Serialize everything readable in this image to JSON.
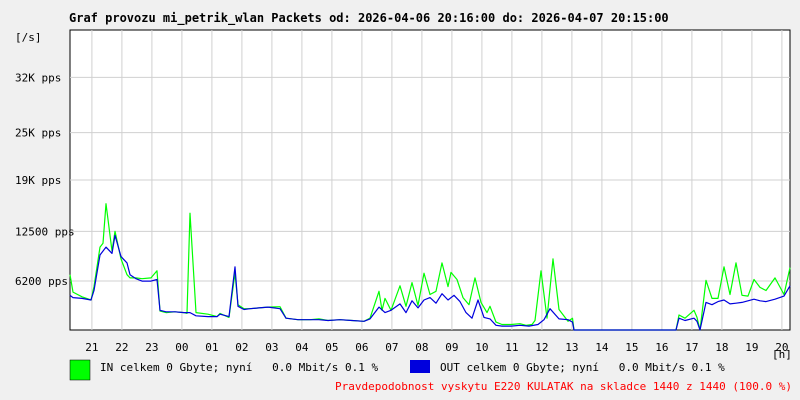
{
  "chart_data": {
    "type": "line",
    "title": "Graf provozu mi_petrik_wlan Packets od: 2026-04-06 20:16:00 do: 2026-04-07 20:15:00",
    "ylabel": "[/s]",
    "xlabel": "[h]",
    "ylim": [
      0,
      38000
    ],
    "y_ticks": [
      {
        "value": 6200,
        "label": "6200 pps"
      },
      {
        "value": 12500,
        "label": "12500 pps"
      },
      {
        "value": 19000,
        "label": "19K pps"
      },
      {
        "value": 25000,
        "label": "25K pps"
      },
      {
        "value": 32000,
        "label": "32K pps"
      }
    ],
    "x_ticks": [
      {
        "value": 0.73,
        "label": "21"
      },
      {
        "value": 1.73,
        "label": "22"
      },
      {
        "value": 2.73,
        "label": "23"
      },
      {
        "value": 3.73,
        "label": "00"
      },
      {
        "value": 4.73,
        "label": "01"
      },
      {
        "value": 5.73,
        "label": "02"
      },
      {
        "value": 6.73,
        "label": "03"
      },
      {
        "value": 7.73,
        "label": "04"
      },
      {
        "value": 8.73,
        "label": "05"
      },
      {
        "value": 9.73,
        "label": "06"
      },
      {
        "value": 10.73,
        "label": "07"
      },
      {
        "value": 11.73,
        "label": "08"
      },
      {
        "value": 12.73,
        "label": "09"
      },
      {
        "value": 13.73,
        "label": "10"
      },
      {
        "value": 14.73,
        "label": "11"
      },
      {
        "value": 15.73,
        "label": "12"
      },
      {
        "value": 16.73,
        "label": "13"
      },
      {
        "value": 17.73,
        "label": "14"
      },
      {
        "value": 18.73,
        "label": "15"
      },
      {
        "value": 19.73,
        "label": "16"
      },
      {
        "value": 20.73,
        "label": "17"
      },
      {
        "value": 21.73,
        "label": "18"
      },
      {
        "value": 22.73,
        "label": "19"
      },
      {
        "value": 23.73,
        "label": "20"
      }
    ],
    "xlim": [
      0,
      24
    ],
    "grid": true,
    "series": [
      {
        "name": "IN",
        "color": "#00ff00",
        "x": [
          0,
          0.1,
          0.4,
          0.7,
          0.8,
          1.0,
          1.1,
          1.2,
          1.4,
          1.5,
          1.7,
          1.9,
          2.0,
          2.2,
          2.4,
          2.7,
          2.9,
          3.0,
          3.2,
          3.5,
          3.8,
          3.9,
          4.0,
          4.2,
          4.6,
          4.9,
          5.0,
          5.3,
          5.5,
          5.6,
          5.8,
          6.0,
          6.3,
          6.6,
          7.0,
          7.2,
          7.6,
          8.0,
          8.3,
          8.6,
          9.0,
          9.4,
          9.8,
          10.0,
          10.3,
          10.4,
          10.5,
          10.7,
          11.0,
          11.2,
          11.4,
          11.6,
          11.8,
          12.0,
          12.2,
          12.4,
          12.6,
          12.7,
          12.9,
          13.1,
          13.3,
          13.5,
          13.7,
          13.9,
          14.0,
          14.2,
          14.4,
          14.7,
          15.0,
          15.2,
          15.4,
          15.5,
          15.7,
          15.9,
          16.1,
          16.3,
          16.6,
          16.75,
          16.8,
          20.2,
          20.3,
          20.5,
          20.8,
          20.9,
          21.0,
          21.2,
          21.4,
          21.6,
          21.8,
          22.0,
          22.2,
          22.4,
          22.6,
          22.8,
          23.0,
          23.2,
          23.5,
          23.8,
          24.0
        ],
        "values": [
          7000,
          4800,
          4200,
          3800,
          5500,
          10500,
          11000,
          16000,
          10000,
          12500,
          9000,
          7000,
          6600,
          6600,
          6500,
          6600,
          7500,
          2400,
          2200,
          2300,
          2200,
          2100,
          14800,
          2200,
          2000,
          1700,
          2100,
          1600,
          7200,
          3200,
          2700,
          2700,
          2800,
          2900,
          2950,
          1500,
          1300,
          1300,
          1400,
          1200,
          1300,
          1200,
          1100,
          1500,
          4900,
          2500,
          4000,
          2500,
          5600,
          3000,
          6000,
          3100,
          7200,
          4500,
          4900,
          8500,
          5500,
          7300,
          6400,
          4100,
          3200,
          6600,
          3500,
          2200,
          3000,
          1000,
          700,
          700,
          800,
          600,
          700,
          1200,
          7500,
          1500,
          9000,
          2600,
          1100,
          1500,
          0,
          0,
          1900,
          1500,
          2500,
          1600,
          0,
          6300,
          4000,
          4000,
          8000,
          4500,
          8500,
          4400,
          4300,
          6400,
          5400,
          5000,
          6600,
          4500,
          7900
        ]
      },
      {
        "name": "OUT",
        "color": "#0000dd",
        "x": [
          0,
          0.1,
          0.4,
          0.7,
          0.8,
          1.0,
          1.2,
          1.4,
          1.5,
          1.7,
          1.9,
          2.0,
          2.2,
          2.4,
          2.7,
          2.9,
          3.0,
          3.2,
          3.5,
          3.8,
          4.0,
          4.2,
          4.6,
          4.9,
          5.0,
          5.3,
          5.5,
          5.6,
          5.8,
          6.0,
          6.3,
          6.6,
          7.0,
          7.2,
          7.6,
          8.0,
          8.3,
          8.6,
          9.0,
          9.4,
          9.8,
          10.0,
          10.3,
          10.5,
          10.7,
          11.0,
          11.2,
          11.4,
          11.6,
          11.8,
          12.0,
          12.2,
          12.4,
          12.6,
          12.8,
          13.0,
          13.2,
          13.4,
          13.6,
          13.8,
          14.0,
          14.2,
          14.4,
          14.7,
          15.0,
          15.3,
          15.6,
          15.8,
          16.0,
          16.3,
          16.6,
          16.75,
          16.8,
          20.2,
          20.3,
          20.5,
          20.8,
          20.9,
          21.0,
          21.2,
          21.4,
          21.6,
          21.8,
          22.0,
          22.2,
          22.4,
          22.6,
          22.8,
          23.0,
          23.2,
          23.5,
          23.8,
          24.0
        ],
        "values": [
          4400,
          4100,
          4000,
          3800,
          5000,
          9500,
          10500,
          9700,
          12000,
          9300,
          8500,
          7000,
          6500,
          6200,
          6200,
          6400,
          2500,
          2300,
          2300,
          2200,
          2200,
          1800,
          1700,
          1700,
          2000,
          1700,
          8000,
          3000,
          2600,
          2700,
          2800,
          2900,
          2700,
          1500,
          1300,
          1300,
          1300,
          1200,
          1300,
          1200,
          1100,
          1400,
          2900,
          2200,
          2500,
          3300,
          2200,
          3700,
          2800,
          3800,
          4100,
          3400,
          4600,
          3800,
          4400,
          3600,
          2200,
          1500,
          3800,
          1600,
          1400,
          600,
          500,
          500,
          600,
          500,
          700,
          1300,
          2700,
          1400,
          1300,
          1000,
          0,
          0,
          1500,
          1200,
          1500,
          1100,
          0,
          3500,
          3200,
          3600,
          3800,
          3300,
          3400,
          3500,
          3700,
          3900,
          3700,
          3600,
          3900,
          4300,
          5600
        ]
      }
    ]
  },
  "legend": {
    "in_text": "IN celkem 0 Gbyte; nyní   0.0 Mbit/s 0.1 %",
    "out_text": "OUT celkem 0 Gbyte; nyní   0.0 Mbit/s 0.1 %",
    "in_color": "#00ff00",
    "out_color": "#0000dd"
  },
  "footer": {
    "text": "Pravdepodobnost vyskytu E220 KULATAK na skladce 1440 z 1440 (100.0 %)",
    "color": "#ff0000"
  }
}
